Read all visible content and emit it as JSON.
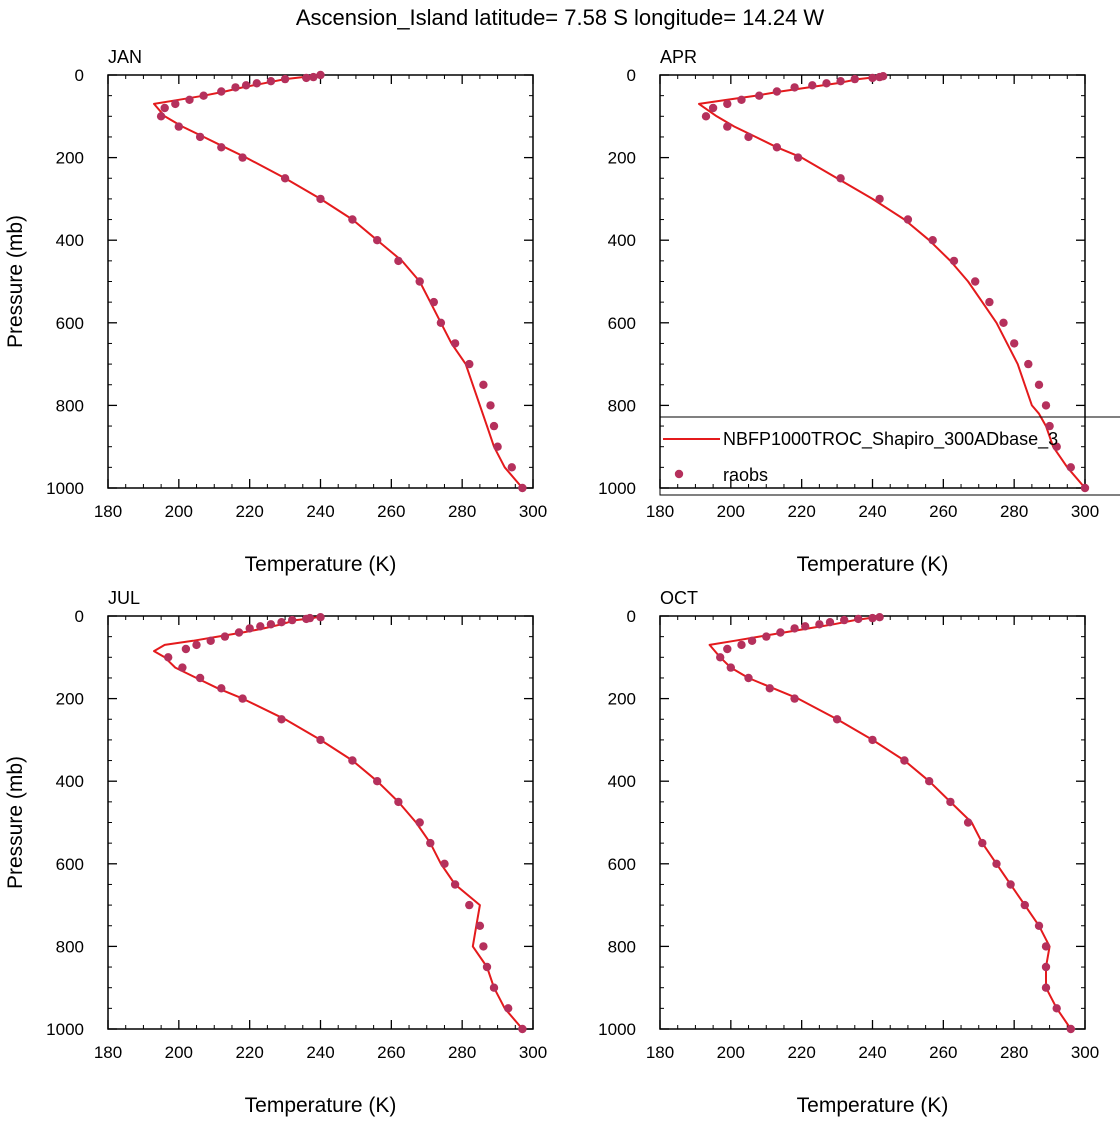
{
  "figure": {
    "title": "Ascension_Island  latitude= 7.58 S longitude= 14.24 W"
  },
  "legend": {
    "line_label": "NBFP1000TROC_Shapiro_300ADbase_3",
    "marker_label": "raobs",
    "line_color": "#e41a1c",
    "marker_color": "#b5305c"
  },
  "chart_data": [
    {
      "type": "line",
      "title": "JAN",
      "xlabel": "Temperature (K)",
      "ylabel": "Pressure (mb)",
      "xlim": [
        180,
        300
      ],
      "ylim": [
        0,
        1000
      ],
      "y_inverted": true,
      "xticks": [
        180,
        200,
        220,
        240,
        260,
        280,
        300
      ],
      "yticks": [
        0,
        200,
        400,
        600,
        800,
        1000
      ],
      "line": [
        [
          297,
          1000
        ],
        [
          292,
          950
        ],
        [
          289,
          900
        ],
        [
          287,
          850
        ],
        [
          285,
          800
        ],
        [
          283,
          750
        ],
        [
          281,
          700
        ],
        [
          277,
          650
        ],
        [
          274,
          600
        ],
        [
          271,
          550
        ],
        [
          268,
          500
        ],
        [
          263,
          450
        ],
        [
          256,
          400
        ],
        [
          249,
          350
        ],
        [
          240,
          300
        ],
        [
          230,
          250
        ],
        [
          219,
          200
        ],
        [
          213,
          175
        ],
        [
          207,
          150
        ],
        [
          201,
          125
        ],
        [
          196,
          100
        ],
        [
          193,
          70
        ],
        [
          200,
          60
        ],
        [
          207,
          50
        ],
        [
          213,
          40
        ],
        [
          218,
          30
        ],
        [
          224,
          20
        ],
        [
          230,
          10
        ],
        [
          235,
          5
        ],
        [
          240,
          0
        ]
      ],
      "points": [
        [
          297,
          1000
        ],
        [
          294,
          950
        ],
        [
          290,
          900
        ],
        [
          289,
          850
        ],
        [
          288,
          800
        ],
        [
          286,
          750
        ],
        [
          282,
          700
        ],
        [
          278,
          650
        ],
        [
          274,
          600
        ],
        [
          272,
          550
        ],
        [
          268,
          500
        ],
        [
          262,
          450
        ],
        [
          256,
          400
        ],
        [
          249,
          350
        ],
        [
          240,
          300
        ],
        [
          230,
          250
        ],
        [
          218,
          200
        ],
        [
          212,
          175
        ],
        [
          206,
          150
        ],
        [
          200,
          125
        ],
        [
          195,
          100
        ],
        [
          196,
          80
        ],
        [
          199,
          70
        ],
        [
          203,
          60
        ],
        [
          207,
          50
        ],
        [
          212,
          40
        ],
        [
          216,
          30
        ],
        [
          219,
          25
        ],
        [
          222,
          20
        ],
        [
          226,
          15
        ],
        [
          230,
          10
        ],
        [
          236,
          7
        ],
        [
          238,
          5
        ],
        [
          240,
          0
        ]
      ]
    },
    {
      "type": "line",
      "title": "APR",
      "xlabel": "Temperature (K)",
      "ylabel": "",
      "xlim": [
        180,
        300
      ],
      "ylim": [
        0,
        1000
      ],
      "y_inverted": true,
      "xticks": [
        180,
        200,
        220,
        240,
        260,
        280,
        300
      ],
      "yticks": [
        0,
        200,
        400,
        600,
        800,
        1000
      ],
      "line": [
        [
          300,
          1000
        ],
        [
          295,
          950
        ],
        [
          291,
          900
        ],
        [
          289,
          850
        ],
        [
          287,
          820
        ],
        [
          285,
          800
        ],
        [
          283,
          750
        ],
        [
          281,
          700
        ],
        [
          278,
          650
        ],
        [
          275,
          600
        ],
        [
          271,
          550
        ],
        [
          267,
          500
        ],
        [
          262,
          450
        ],
        [
          256,
          400
        ],
        [
          249,
          350
        ],
        [
          240,
          300
        ],
        [
          230,
          250
        ],
        [
          220,
          200
        ],
        [
          213,
          175
        ],
        [
          207,
          150
        ],
        [
          201,
          125
        ],
        [
          196,
          100
        ],
        [
          191,
          70
        ],
        [
          199,
          60
        ],
        [
          207,
          50
        ],
        [
          214,
          40
        ],
        [
          222,
          30
        ],
        [
          230,
          20
        ],
        [
          236,
          10
        ],
        [
          241,
          5
        ],
        [
          244,
          0
        ]
      ],
      "points": [
        [
          300,
          1000
        ],
        [
          296,
          950
        ],
        [
          292,
          900
        ],
        [
          290,
          850
        ],
        [
          289,
          800
        ],
        [
          287,
          750
        ],
        [
          284,
          700
        ],
        [
          280,
          650
        ],
        [
          277,
          600
        ],
        [
          273,
          550
        ],
        [
          269,
          500
        ],
        [
          263,
          450
        ],
        [
          257,
          400
        ],
        [
          250,
          350
        ],
        [
          242,
          300
        ],
        [
          231,
          250
        ],
        [
          219,
          200
        ],
        [
          213,
          175
        ],
        [
          205,
          150
        ],
        [
          199,
          125
        ],
        [
          193,
          100
        ],
        [
          195,
          80
        ],
        [
          199,
          70
        ],
        [
          203,
          60
        ],
        [
          208,
          50
        ],
        [
          213,
          40
        ],
        [
          218,
          30
        ],
        [
          223,
          25
        ],
        [
          227,
          20
        ],
        [
          231,
          15
        ],
        [
          235,
          10
        ],
        [
          240,
          7
        ],
        [
          242,
          5
        ],
        [
          243,
          3
        ]
      ]
    },
    {
      "type": "line",
      "title": "JUL",
      "xlabel": "Temperature (K)",
      "ylabel": "Pressure (mb)",
      "xlim": [
        180,
        300
      ],
      "ylim": [
        0,
        1000
      ],
      "y_inverted": true,
      "xticks": [
        180,
        200,
        220,
        240,
        260,
        280,
        300
      ],
      "yticks": [
        0,
        200,
        400,
        600,
        800,
        1000
      ],
      "line": [
        [
          297,
          1000
        ],
        [
          292,
          950
        ],
        [
          289,
          900
        ],
        [
          287,
          850
        ],
        [
          283,
          800
        ],
        [
          284,
          750
        ],
        [
          285,
          700
        ],
        [
          278,
          650
        ],
        [
          274,
          600
        ],
        [
          271,
          550
        ],
        [
          267,
          500
        ],
        [
          262,
          450
        ],
        [
          256,
          400
        ],
        [
          249,
          350
        ],
        [
          240,
          300
        ],
        [
          230,
          250
        ],
        [
          218,
          200
        ],
        [
          211,
          175
        ],
        [
          205,
          150
        ],
        [
          199,
          125
        ],
        [
          196,
          100
        ],
        [
          193,
          85
        ],
        [
          196,
          70
        ],
        [
          204,
          60
        ],
        [
          211,
          50
        ],
        [
          218,
          40
        ],
        [
          224,
          30
        ],
        [
          229,
          20
        ],
        [
          233,
          10
        ],
        [
          238,
          5
        ],
        [
          240,
          0
        ]
      ],
      "points": [
        [
          297,
          1000
        ],
        [
          293,
          950
        ],
        [
          289,
          900
        ],
        [
          287,
          850
        ],
        [
          286,
          800
        ],
        [
          285,
          750
        ],
        [
          282,
          700
        ],
        [
          278,
          650
        ],
        [
          275,
          600
        ],
        [
          271,
          550
        ],
        [
          268,
          500
        ],
        [
          262,
          450
        ],
        [
          256,
          400
        ],
        [
          249,
          350
        ],
        [
          240,
          300
        ],
        [
          229,
          250
        ],
        [
          218,
          200
        ],
        [
          212,
          175
        ],
        [
          206,
          150
        ],
        [
          201,
          125
        ],
        [
          197,
          100
        ],
        [
          202,
          80
        ],
        [
          205,
          70
        ],
        [
          209,
          60
        ],
        [
          213,
          50
        ],
        [
          217,
          40
        ],
        [
          220,
          30
        ],
        [
          223,
          25
        ],
        [
          226,
          20
        ],
        [
          229,
          15
        ],
        [
          232,
          10
        ],
        [
          236,
          7
        ],
        [
          237,
          5
        ],
        [
          240,
          3
        ]
      ]
    },
    {
      "type": "line",
      "title": "OCT",
      "xlabel": "Temperature (K)",
      "ylabel": "",
      "xlim": [
        180,
        300
      ],
      "ylim": [
        0,
        1000
      ],
      "y_inverted": true,
      "xticks": [
        180,
        200,
        220,
        240,
        260,
        280,
        300
      ],
      "yticks": [
        0,
        200,
        400,
        600,
        800,
        1000
      ],
      "line": [
        [
          296,
          1000
        ],
        [
          292,
          950
        ],
        [
          289,
          900
        ],
        [
          289,
          850
        ],
        [
          290,
          800
        ],
        [
          287,
          750
        ],
        [
          283,
          700
        ],
        [
          279,
          650
        ],
        [
          275,
          600
        ],
        [
          271,
          550
        ],
        [
          268,
          500
        ],
        [
          262,
          450
        ],
        [
          256,
          400
        ],
        [
          249,
          350
        ],
        [
          240,
          300
        ],
        [
          230,
          250
        ],
        [
          219,
          200
        ],
        [
          212,
          175
        ],
        [
          205,
          150
        ],
        [
          200,
          125
        ],
        [
          197,
          100
        ],
        [
          195,
          80
        ],
        [
          194,
          70
        ],
        [
          201,
          60
        ],
        [
          208,
          50
        ],
        [
          215,
          40
        ],
        [
          222,
          30
        ],
        [
          229,
          20
        ],
        [
          235,
          10
        ],
        [
          239,
          5
        ],
        [
          241,
          0
        ]
      ],
      "points": [
        [
          296,
          1000
        ],
        [
          292,
          950
        ],
        [
          289,
          900
        ],
        [
          289,
          850
        ],
        [
          289,
          800
        ],
        [
          287,
          750
        ],
        [
          283,
          700
        ],
        [
          279,
          650
        ],
        [
          275,
          600
        ],
        [
          271,
          550
        ],
        [
          267,
          500
        ],
        [
          262,
          450
        ],
        [
          256,
          400
        ],
        [
          249,
          350
        ],
        [
          240,
          300
        ],
        [
          230,
          250
        ],
        [
          218,
          200
        ],
        [
          211,
          175
        ],
        [
          205,
          150
        ],
        [
          200,
          125
        ],
        [
          197,
          100
        ],
        [
          199,
          80
        ],
        [
          203,
          70
        ],
        [
          206,
          60
        ],
        [
          210,
          50
        ],
        [
          214,
          40
        ],
        [
          218,
          30
        ],
        [
          221,
          25
        ],
        [
          225,
          20
        ],
        [
          228,
          15
        ],
        [
          232,
          10
        ],
        [
          236,
          7
        ],
        [
          240,
          5
        ],
        [
          242,
          3
        ]
      ]
    }
  ]
}
